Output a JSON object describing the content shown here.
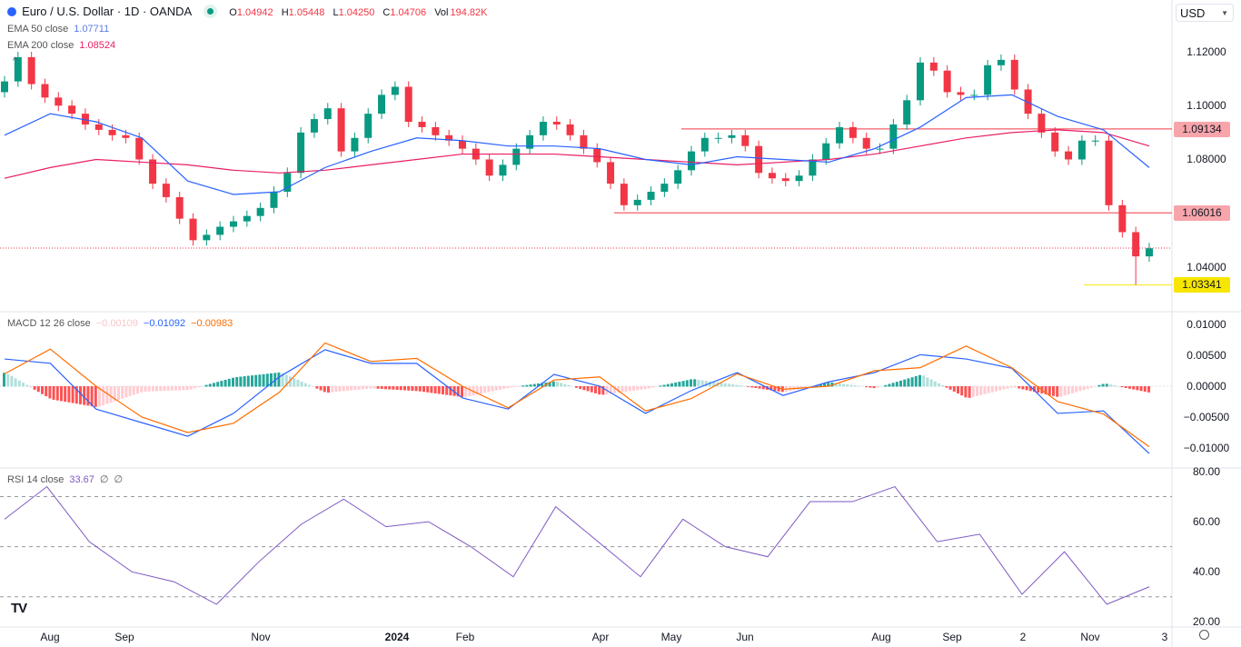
{
  "header": {
    "title": "Euro / U.S. Dollar · 1D · OANDA",
    "open_label": "O",
    "open": "1.04942",
    "high_label": "H",
    "high": "1.05448",
    "low_label": "L",
    "low": "1.04250",
    "close_label": "C",
    "close": "1.04706",
    "vol_label": "Vol",
    "vol": "194.82K",
    "currency": "USD",
    "status_color": "#089981"
  },
  "legends": {
    "ema50": {
      "label": "EMA 50 close",
      "value": "1.07711",
      "color": "#2962ff"
    },
    "ema200": {
      "label": "EMA 200 close",
      "value": "1.08524",
      "color": "#e91e63"
    },
    "macd": {
      "label": "MACD 12 26 close",
      "hist": "−0.00109",
      "macd": "−0.01092",
      "signal": "−0.00983"
    },
    "rsi": {
      "label": "RSI 14 close",
      "value": "33.67",
      "extra1": "∅",
      "extra2": "∅"
    }
  },
  "colors": {
    "up": "#089981",
    "down": "#f23645",
    "ema50": "#2962ff",
    "ema200": "#e91e63",
    "macd": "#2962ff",
    "signal": "#ff6d00",
    "rsi": "#7e57c2",
    "support": "#f7e600"
  },
  "chart_data": [
    {
      "type": "candlestick",
      "title": "Euro / U.S. Dollar · 1D · OANDA",
      "closes": [
        1.109,
        1.118,
        1.108,
        1.103,
        1.1,
        1.097,
        1.093,
        1.091,
        1.089,
        1.088,
        1.08,
        1.071,
        1.066,
        1.058,
        1.05,
        1.052,
        1.055,
        1.057,
        1.059,
        1.062,
        1.068,
        1.075,
        1.09,
        1.095,
        1.099,
        1.083,
        1.088,
        1.097,
        1.104,
        1.107,
        1.094,
        1.092,
        1.089,
        1.087,
        1.084,
        1.08,
        1.074,
        1.078,
        1.084,
        1.089,
        1.094,
        1.093,
        1.089,
        1.084,
        1.079,
        1.071,
        1.063,
        1.065,
        1.068,
        1.071,
        1.076,
        1.083,
        1.088,
        1.088,
        1.089,
        1.085,
        1.075,
        1.073,
        1.072,
        1.074,
        1.08,
        1.086,
        1.092,
        1.088,
        1.084,
        1.084,
        1.093,
        1.102,
        1.116,
        1.113,
        1.105,
        1.104,
        1.104,
        1.115,
        1.117,
        1.106,
        1.097,
        1.09,
        1.083,
        1.08,
        1.087,
        1.087,
        1.063,
        1.053,
        1.044,
        1.047
      ],
      "period_low": 1.03341,
      "ema50": [
        1.089,
        1.097,
        1.094,
        1.088,
        1.072,
        1.067,
        1.068,
        1.077,
        1.083,
        1.088,
        1.087,
        1.085,
        1.085,
        1.084,
        1.08,
        1.078,
        1.081,
        1.08,
        1.079,
        1.084,
        1.092,
        1.103,
        1.104,
        1.096,
        1.091,
        1.077
      ],
      "ema200": [
        1.073,
        1.077,
        1.08,
        1.079,
        1.078,
        1.076,
        1.075,
        1.076,
        1.078,
        1.08,
        1.082,
        1.082,
        1.082,
        1.081,
        1.08,
        1.079,
        1.078,
        1.079,
        1.08,
        1.082,
        1.085,
        1.088,
        1.09,
        1.091,
        1.09,
        1.085
      ],
      "y_ticks": [
        "1.12000",
        "1.10000",
        "1.08000",
        "1.04000"
      ],
      "ylim": [
        1.024,
        1.139
      ],
      "horizontal_levels": [
        {
          "value": 1.09134,
          "label": "1.09134",
          "color": "#f23645"
        },
        {
          "value": 1.06016,
          "label": "1.06016",
          "color": "#f23645"
        },
        {
          "value": 1.03341,
          "label": "1.03341",
          "color": "#f7e600"
        }
      ],
      "last_price": 1.04706
    },
    {
      "type": "line",
      "title": "MACD 12 26 close",
      "macd": [
        0.0044,
        0.0037,
        -0.0037,
        -0.0059,
        -0.0081,
        -0.0044,
        0.0015,
        0.0059,
        0.0037,
        0.0037,
        -0.0019,
        -0.0037,
        0.0019,
        0.0,
        -0.0044,
        -0.0007,
        0.0022,
        -0.0015,
        0.0007,
        0.0022,
        0.0051,
        0.0044,
        0.0029,
        -0.0044,
        -0.004,
        -0.0109
      ],
      "signal": [
        0.002,
        0.006,
        0.0,
        -0.005,
        -0.0075,
        -0.006,
        -0.001,
        0.007,
        0.004,
        0.0045,
        0.0,
        -0.0035,
        0.001,
        0.0015,
        -0.004,
        -0.002,
        0.002,
        -0.0005,
        0.0,
        0.0025,
        0.003,
        0.0065,
        0.003,
        -0.0025,
        -0.0045,
        -0.0098
      ],
      "y_ticks": [
        "0.01000",
        "0.00500",
        "0.00000",
        "−0.00500",
        "−0.01000"
      ]
    },
    {
      "type": "line",
      "title": "RSI 14 close",
      "rsi": [
        61,
        74,
        52,
        40,
        36,
        27,
        44,
        59,
        69,
        58,
        60,
        50,
        38,
        66,
        52,
        38,
        61,
        50,
        46,
        68,
        68,
        74,
        52,
        55,
        31,
        48,
        27,
        34
      ],
      "levels": [
        70,
        50,
        30
      ],
      "y_ticks": [
        "80.00",
        "60.00",
        "40.00",
        "20.00"
      ]
    }
  ],
  "time_axis": [
    "Aug",
    "Sep",
    "Nov",
    "2024",
    "Feb",
    "Apr",
    "May",
    "Jun",
    "Aug",
    "Sep",
    "2",
    "Nov",
    "3"
  ],
  "logo": "TV"
}
